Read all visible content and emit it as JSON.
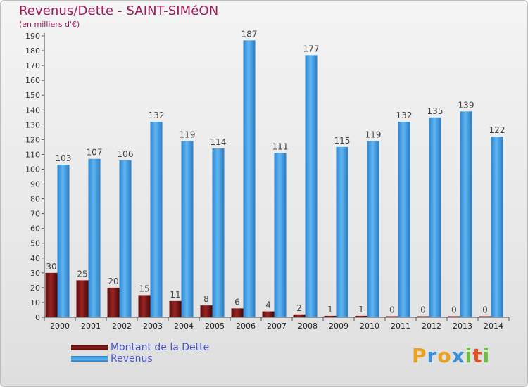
{
  "header": {
    "title": "Revenus/Dette - SAINT-SIMéON",
    "subtitle": "(en milliers d'€)"
  },
  "legend": {
    "debt_label": "Montant de la Dette",
    "revenue_label": "Revenus"
  },
  "logo": {
    "letters": [
      "P",
      "r",
      "o",
      "x",
      "i",
      "t",
      "i"
    ],
    "colors": [
      "#e8a020",
      "#3a8fd8",
      "#e8a020",
      "#3a8fd8",
      "#6cbf3a",
      "#e85020",
      "#6cbf3a"
    ]
  },
  "colors": {
    "debt": "#7a1414",
    "revenue": "#3f9fe3",
    "title": "#a0185a",
    "legend_text": "#4655c8"
  },
  "chart_data": {
    "type": "bar",
    "title": "Revenus/Dette - SAINT-SIMéON",
    "ylabel": "(en milliers d'€)",
    "ylim": [
      0,
      190
    ],
    "ytick_step": 10,
    "grid": false,
    "legend_position": "bottom-left",
    "categories": [
      "2000",
      "2001",
      "2002",
      "2003",
      "2004",
      "2005",
      "2006",
      "2007",
      "2008",
      "2009",
      "2010",
      "2011",
      "2012",
      "2013",
      "2014"
    ],
    "series": [
      {
        "name": "Montant de la Dette",
        "values": [
          30,
          25,
          20,
          15,
          11,
          8,
          6,
          4,
          2,
          1,
          1,
          0,
          0,
          0,
          0
        ]
      },
      {
        "name": "Revenus",
        "values": [
          103,
          107,
          106,
          132,
          119,
          114,
          187,
          111,
          177,
          115,
          119,
          132,
          135,
          139,
          122
        ]
      }
    ]
  }
}
